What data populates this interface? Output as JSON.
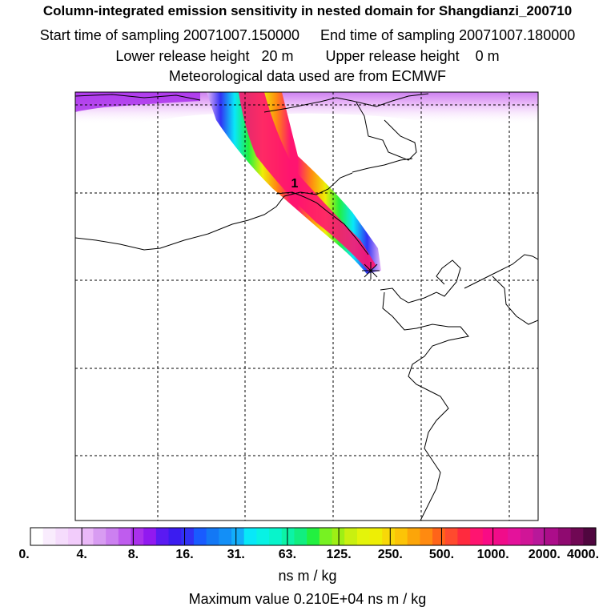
{
  "header": {
    "title": "Column-integrated emission sensitivity in nested domain for Shangdianzi_200710",
    "start_label": "Start time of sampling 20071007.150000",
    "end_label": "End time of sampling 20071007.180000",
    "lower_label": "Lower release height   20 m",
    "upper_label": "Upper release height    0 m",
    "met_label": "Meteorological data used are from ECMWF"
  },
  "chart_data": {
    "type": "heatmap",
    "title": "Column-integrated emission sensitivity in nested domain for Shangdianzi_200710",
    "colorbar": {
      "label": "ns m / kg",
      "tick_labels": [
        "0.",
        "4.",
        "8.",
        "16.",
        "31.",
        "63.",
        "125.",
        "250.",
        "500.",
        "1000.",
        "2000.",
        "4000."
      ],
      "tick_values": [
        0,
        4,
        8,
        16,
        31,
        63,
        125,
        250,
        500,
        1000,
        2000,
        4000
      ],
      "colors": [
        "#ffffff",
        "#f9ecfd",
        "#f5dcfc",
        "#f2ccfb",
        "#eab8f8",
        "#d89cf2",
        "#cc80f0",
        "#bf5cee",
        "#aa30ec",
        "#9119f0",
        "#5a1af2",
        "#3b1cf0",
        "#3131f5",
        "#195bff",
        "#1378f5",
        "#138ff7",
        "#13adfa",
        "#08e8f8",
        "#08f2e4",
        "#08f4cb",
        "#0cf3a6",
        "#11ee80",
        "#22f040",
        "#77f222",
        "#9eef15",
        "#c9f010",
        "#e4f40a",
        "#eeee05",
        "#f8d808",
        "#fcc407",
        "#fca509",
        "#ff8a10",
        "#ff6419",
        "#ff4a2e",
        "#ff2a3e",
        "#ff1470",
        "#f90b85",
        "#f00c8a",
        "#e4129b",
        "#d01597",
        "#b8189a",
        "#ac0d8a",
        "#8f0a70",
        "#700854",
        "#50063f"
      ]
    },
    "maximum_text": "Maximum value  0.210E+04 ns m / kg",
    "maximum_value": 2100,
    "release_marker_label": "1",
    "release_site": "Shangdianzi",
    "grid": true
  }
}
